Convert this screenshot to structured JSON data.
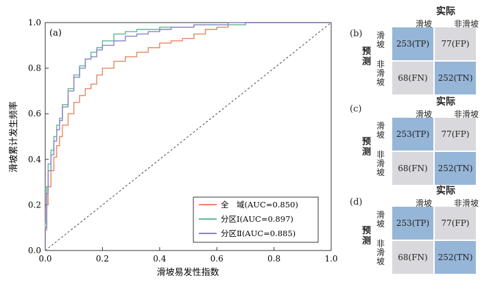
{
  "chart_data": {
    "type": "line",
    "panel": "(a)",
    "xlabel": "滑坡易发性指数",
    "ylabel": "滑坡累计发生频率",
    "xlim": [
      0,
      1
    ],
    "ylim": [
      0,
      1
    ],
    "xticks": [
      "0.0",
      "0.2",
      "0.4",
      "0.6",
      "0.8",
      "1.0"
    ],
    "yticks": [
      "0.0",
      "0.2",
      "0.4",
      "0.6",
      "0.8",
      "1.0"
    ],
    "grid": false,
    "legend_position": "bottom-right",
    "diagonal": true,
    "series": [
      {
        "name": "全　域(AUC=0.850)",
        "color": "#e8855d",
        "x": [
          0,
          0.005,
          0.01,
          0.02,
          0.03,
          0.04,
          0.05,
          0.06,
          0.08,
          0.1,
          0.12,
          0.14,
          0.16,
          0.18,
          0.2,
          0.24,
          0.28,
          0.32,
          0.36,
          0.4,
          0.44,
          0.48,
          0.52,
          0.56,
          0.6,
          0.64,
          0.7,
          0.8,
          0.9,
          1.0
        ],
        "y": [
          0,
          0.09,
          0.2,
          0.28,
          0.35,
          0.41,
          0.46,
          0.5,
          0.55,
          0.6,
          0.65,
          0.68,
          0.71,
          0.73,
          0.77,
          0.8,
          0.83,
          0.85,
          0.87,
          0.89,
          0.91,
          0.92,
          0.93,
          0.95,
          0.97,
          0.98,
          0.99,
          1.0,
          1.0,
          1.0
        ]
      },
      {
        "name": "分区Ⅰ(AUC=0.897)",
        "color": "#5fb98e",
        "x": [
          0,
          0.005,
          0.01,
          0.02,
          0.03,
          0.04,
          0.05,
          0.06,
          0.08,
          0.1,
          0.12,
          0.14,
          0.16,
          0.18,
          0.2,
          0.24,
          0.28,
          0.32,
          0.36,
          0.4,
          0.44,
          0.48,
          0.52,
          0.56,
          0.6,
          0.64,
          0.7,
          0.8,
          0.9,
          1.0
        ],
        "y": [
          0,
          0.12,
          0.28,
          0.38,
          0.44,
          0.5,
          0.55,
          0.58,
          0.64,
          0.71,
          0.77,
          0.81,
          0.84,
          0.87,
          0.89,
          0.92,
          0.95,
          0.96,
          0.97,
          0.97,
          0.98,
          0.98,
          0.98,
          0.99,
          0.99,
          0.99,
          0.99,
          1.0,
          1.0,
          1.0
        ]
      },
      {
        "name": "分区Ⅱ(AUC=0.885)",
        "color": "#8683c7",
        "x": [
          0,
          0.005,
          0.01,
          0.02,
          0.03,
          0.04,
          0.05,
          0.06,
          0.08,
          0.1,
          0.12,
          0.14,
          0.16,
          0.18,
          0.2,
          0.24,
          0.28,
          0.32,
          0.36,
          0.4,
          0.44,
          0.48,
          0.52,
          0.56,
          0.6,
          0.64,
          0.7,
          0.8,
          0.9,
          1.0
        ],
        "y": [
          0,
          0.1,
          0.25,
          0.35,
          0.42,
          0.48,
          0.53,
          0.57,
          0.63,
          0.7,
          0.76,
          0.8,
          0.84,
          0.85,
          0.88,
          0.9,
          0.92,
          0.94,
          0.95,
          0.96,
          0.97,
          0.98,
          0.98,
          0.99,
          0.99,
          0.99,
          1.0,
          1.0,
          1.0,
          1.0
        ]
      }
    ]
  },
  "confusion_matrices": [
    {
      "label": "(b)",
      "title": "实际",
      "col_headers": [
        "滑坡",
        "非滑坡"
      ],
      "row_headers": [
        "滑坡",
        "非滑坡"
      ],
      "pred_label": "预测",
      "cells": [
        "253(TP)",
        "77(FP)",
        "68(FN)",
        "252(TN)"
      ]
    },
    {
      "label": "(c)",
      "title": "实际",
      "col_headers": [
        "滑坡",
        "非滑坡"
      ],
      "row_headers": [
        "滑坡",
        "非滑坡"
      ],
      "pred_label": "预测",
      "cells": [
        "253(TP)",
        "77(FP)",
        "68(FN)",
        "252(TN)"
      ]
    },
    {
      "label": "(d)",
      "title": "实际",
      "col_headers": [
        "滑坡",
        "非滑坡"
      ],
      "row_headers": [
        "滑坡",
        "非滑坡"
      ],
      "pred_label": "预测",
      "cells": [
        "253(TP)",
        "77(FP)",
        "68(FN)",
        "252(TN)"
      ]
    }
  ]
}
